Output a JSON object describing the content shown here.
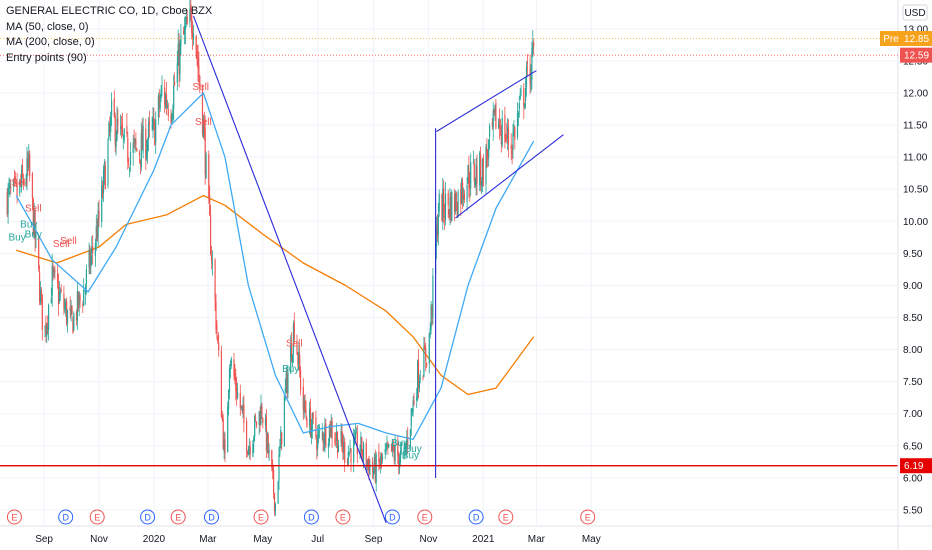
{
  "legend": {
    "title": "GENERAL ELECTRIC CO, 1D, Cboe BZX",
    "ma50": "MA (50, close, 0)",
    "ma200": "MA (200, close, 0)",
    "entry": "Entry points (90)"
  },
  "currency": "USD",
  "price_tags": [
    {
      "label": "Pre",
      "value": "12.85",
      "color": "#f7a21b"
    },
    {
      "label": "",
      "value": "12.59",
      "color": "#ef5350"
    },
    {
      "label": "",
      "value": "6.19",
      "color": "#e60000"
    }
  ],
  "colors": {
    "up": "#26a69a",
    "down": "#ef5350",
    "ma50": "#3fa9f5",
    "ma200": "#f57c00",
    "trendline": "#2a2ad8",
    "support": "#e60000",
    "buy": "#26a69a",
    "sell": "#ef5350"
  },
  "event_markers": [
    "E",
    "D",
    "E",
    "D",
    "E",
    "D",
    "E",
    "D",
    "E",
    "D",
    "E",
    "D",
    "E",
    "E"
  ],
  "chart_data": {
    "type": "candlestick",
    "title": "GENERAL ELECTRIC CO, 1D, Cboe BZX",
    "xlabel": "",
    "ylabel": "USD",
    "x_ticks": [
      "Sep",
      "Nov",
      "2020",
      "Mar",
      "May",
      "Jul",
      "Sep",
      "Nov",
      "2021",
      "Mar",
      "May"
    ],
    "y_ticks": [
      "5.50",
      "6.00",
      "6.50",
      "7.00",
      "7.50",
      "8.00",
      "8.50",
      "9.00",
      "9.50",
      "10.00",
      "10.50",
      "11.00",
      "11.50",
      "12.00",
      "12.50",
      "13.00"
    ],
    "ylim": [
      5.25,
      13.45
    ],
    "price_path_approx": [
      [
        "2019-08-01",
        10.4
      ],
      [
        "2019-08-15",
        10.8
      ],
      [
        "2019-09-01",
        8.2
      ],
      [
        "2019-09-10",
        9.1
      ],
      [
        "2019-10-01",
        8.4
      ],
      [
        "2019-10-15",
        8.9
      ],
      [
        "2019-11-01",
        10.0
      ],
      [
        "2019-11-15",
        11.6
      ],
      [
        "2019-12-01",
        11.1
      ],
      [
        "2019-12-15",
        11.1
      ],
      [
        "2020-01-01",
        11.4
      ],
      [
        "2020-01-10",
        12.0
      ],
      [
        "2020-01-20",
        11.8
      ],
      [
        "2020-02-01",
        12.8
      ],
      [
        "2020-02-14",
        13.2
      ],
      [
        "2020-02-25",
        11.5
      ],
      [
        "2020-03-01",
        10.3
      ],
      [
        "2020-03-10",
        8.5
      ],
      [
        "2020-03-20",
        6.2
      ],
      [
        "2020-03-25",
        7.9
      ],
      [
        "2020-04-15",
        6.5
      ],
      [
        "2020-04-30",
        7.1
      ],
      [
        "2020-05-15",
        5.6
      ],
      [
        "2020-05-25",
        7.2
      ],
      [
        "2020-06-05",
        8.4
      ],
      [
        "2020-06-15",
        7.1
      ],
      [
        "2020-07-01",
        6.6
      ],
      [
        "2020-07-15",
        6.8
      ],
      [
        "2020-08-01",
        6.4
      ],
      [
        "2020-08-15",
        6.5
      ],
      [
        "2020-09-01",
        6.1
      ],
      [
        "2020-09-20",
        6.4
      ],
      [
        "2020-10-05",
        6.3
      ],
      [
        "2020-10-20",
        7.6
      ],
      [
        "2020-11-01",
        8.0
      ],
      [
        "2020-11-06",
        8.9
      ],
      [
        "2020-11-12",
        10.2
      ],
      [
        "2020-12-01",
        10.3
      ],
      [
        "2020-12-15",
        10.7
      ],
      [
        "2021-01-01",
        10.8
      ],
      [
        "2021-01-15",
        11.6
      ],
      [
        "2021-02-01",
        11.2
      ],
      [
        "2021-02-15",
        12.0
      ],
      [
        "2021-02-26",
        12.6
      ]
    ],
    "series": [
      {
        "name": "MA (50, close, 0)",
        "values_approx": [
          [
            "2019-08-01",
            10.4
          ],
          [
            "2019-09-10",
            9.4
          ],
          [
            "2019-10-20",
            8.9
          ],
          [
            "2019-11-20",
            9.6
          ],
          [
            "2020-01-01",
            10.8
          ],
          [
            "2020-01-20",
            11.5
          ],
          [
            "2020-02-25",
            12.0
          ],
          [
            "2020-03-20",
            11.0
          ],
          [
            "2020-04-15",
            9.0
          ],
          [
            "2020-05-15",
            7.6
          ],
          [
            "2020-06-15",
            6.7
          ],
          [
            "2020-07-15",
            6.8
          ],
          [
            "2020-08-15",
            6.85
          ],
          [
            "2020-09-15",
            6.7
          ],
          [
            "2020-10-15",
            6.6
          ],
          [
            "2020-11-15",
            7.4
          ],
          [
            "2020-12-15",
            9.0
          ],
          [
            "2021-01-15",
            10.2
          ],
          [
            "2021-02-26",
            11.25
          ]
        ]
      },
      {
        "name": "MA (200, close, 0)",
        "values_approx": [
          [
            "2019-08-01",
            9.55
          ],
          [
            "2019-09-15",
            9.35
          ],
          [
            "2019-11-01",
            9.6
          ],
          [
            "2019-12-01",
            9.95
          ],
          [
            "2020-01-15",
            10.1
          ],
          [
            "2020-02-25",
            10.4
          ],
          [
            "2020-03-20",
            10.25
          ],
          [
            "2020-05-01",
            9.8
          ],
          [
            "2020-06-15",
            9.35
          ],
          [
            "2020-08-01",
            9.0
          ],
          [
            "2020-09-15",
            8.6
          ],
          [
            "2020-10-15",
            8.2
          ],
          [
            "2020-11-15",
            7.6
          ],
          [
            "2020-12-15",
            7.3
          ],
          [
            "2021-01-15",
            7.4
          ],
          [
            "2021-02-26",
            8.2
          ]
        ]
      }
    ],
    "horizontal_levels": [
      6.19
    ],
    "trendlines_approx": [
      {
        "from": [
          "2020-02-14",
          13.2
        ],
        "to": [
          "2020-09-15",
          5.3
        ]
      },
      {
        "from": [
          "2020-11-10",
          11.4
        ],
        "to": [
          "2021-03-01",
          12.35
        ]
      },
      {
        "from": [
          "2020-12-01",
          10.05
        ],
        "to": [
          "2021-03-31",
          11.35
        ]
      },
      {
        "from": [
          "2020-11-09",
          6.0
        ],
        "to": [
          "2020-11-09",
          11.45
        ]
      }
    ],
    "signals": [
      {
        "text": "Sell",
        "date": "2019-08-05",
        "price": 10.55
      },
      {
        "text": "Sell",
        "date": "2019-08-20",
        "price": 10.15
      },
      {
        "text": "Buy",
        "date": "2019-08-02",
        "price": 9.7
      },
      {
        "text": "Buy",
        "date": "2019-08-15",
        "price": 9.9
      },
      {
        "text": "Buy",
        "date": "2019-08-20",
        "price": 9.75
      },
      {
        "text": "Sell",
        "date": "2019-09-20",
        "price": 9.6
      },
      {
        "text": "Sell",
        "date": "2019-09-28",
        "price": 9.65
      },
      {
        "text": "Sell",
        "date": "2020-02-22",
        "price": 12.05
      },
      {
        "text": "Sell",
        "date": "2020-02-25",
        "price": 11.5
      },
      {
        "text": "Sell",
        "date": "2020-06-05",
        "price": 8.05
      },
      {
        "text": "Buy",
        "date": "2020-06-01",
        "price": 7.65
      },
      {
        "text": "Buy",
        "date": "2020-09-30",
        "price": 6.5
      },
      {
        "text": "Buy",
        "date": "2020-10-15",
        "price": 6.4
      },
      {
        "text": "Buy",
        "date": "2020-10-12",
        "price": 6.3
      }
    ],
    "grid": true,
    "legend_position": "top-left"
  }
}
